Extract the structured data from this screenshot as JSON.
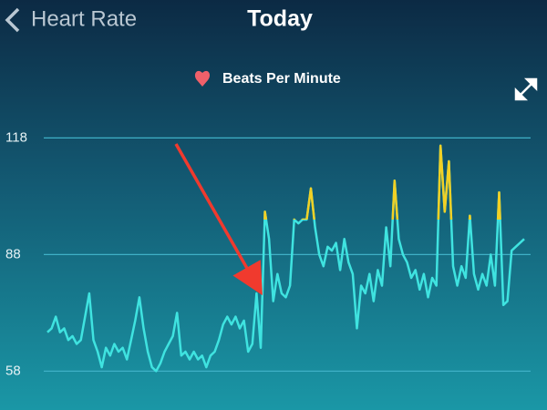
{
  "header": {
    "back_label": "Heart Rate",
    "title": "Today"
  },
  "chart_data": {
    "type": "line",
    "series": [
      {
        "name": "Beats Per Minute",
        "color": "#3fe3e0",
        "values": [
          68,
          69,
          72,
          68,
          69,
          66,
          67,
          65,
          66,
          72,
          78,
          66,
          63,
          59,
          64,
          62,
          65,
          63,
          64,
          61,
          66,
          71,
          77,
          69,
          63,
          59,
          58,
          60,
          63,
          65,
          67,
          73,
          62,
          63,
          61,
          63,
          61,
          62,
          59,
          62,
          63,
          66,
          70,
          72,
          70,
          72,
          69,
          71,
          63,
          65,
          78,
          64,
          99,
          92,
          76,
          83,
          78,
          77,
          80,
          97,
          96,
          97,
          97,
          105,
          95,
          88,
          85,
          90,
          89,
          91,
          84,
          92,
          86,
          83,
          69,
          80,
          78,
          83,
          76,
          84,
          80,
          95,
          85,
          107,
          92,
          88,
          86,
          82,
          84,
          79,
          83,
          77,
          82,
          80,
          116,
          99,
          112,
          85,
          80,
          85,
          82,
          98,
          83,
          79,
          83,
          80,
          88,
          80,
          104,
          75,
          76,
          89,
          90,
          91,
          92
        ]
      }
    ],
    "peak_threshold": 97,
    "peak_color": "#f2d024",
    "ylim": [
      48,
      127
    ],
    "yticks": [
      58,
      88,
      118
    ],
    "grid": true
  }
}
